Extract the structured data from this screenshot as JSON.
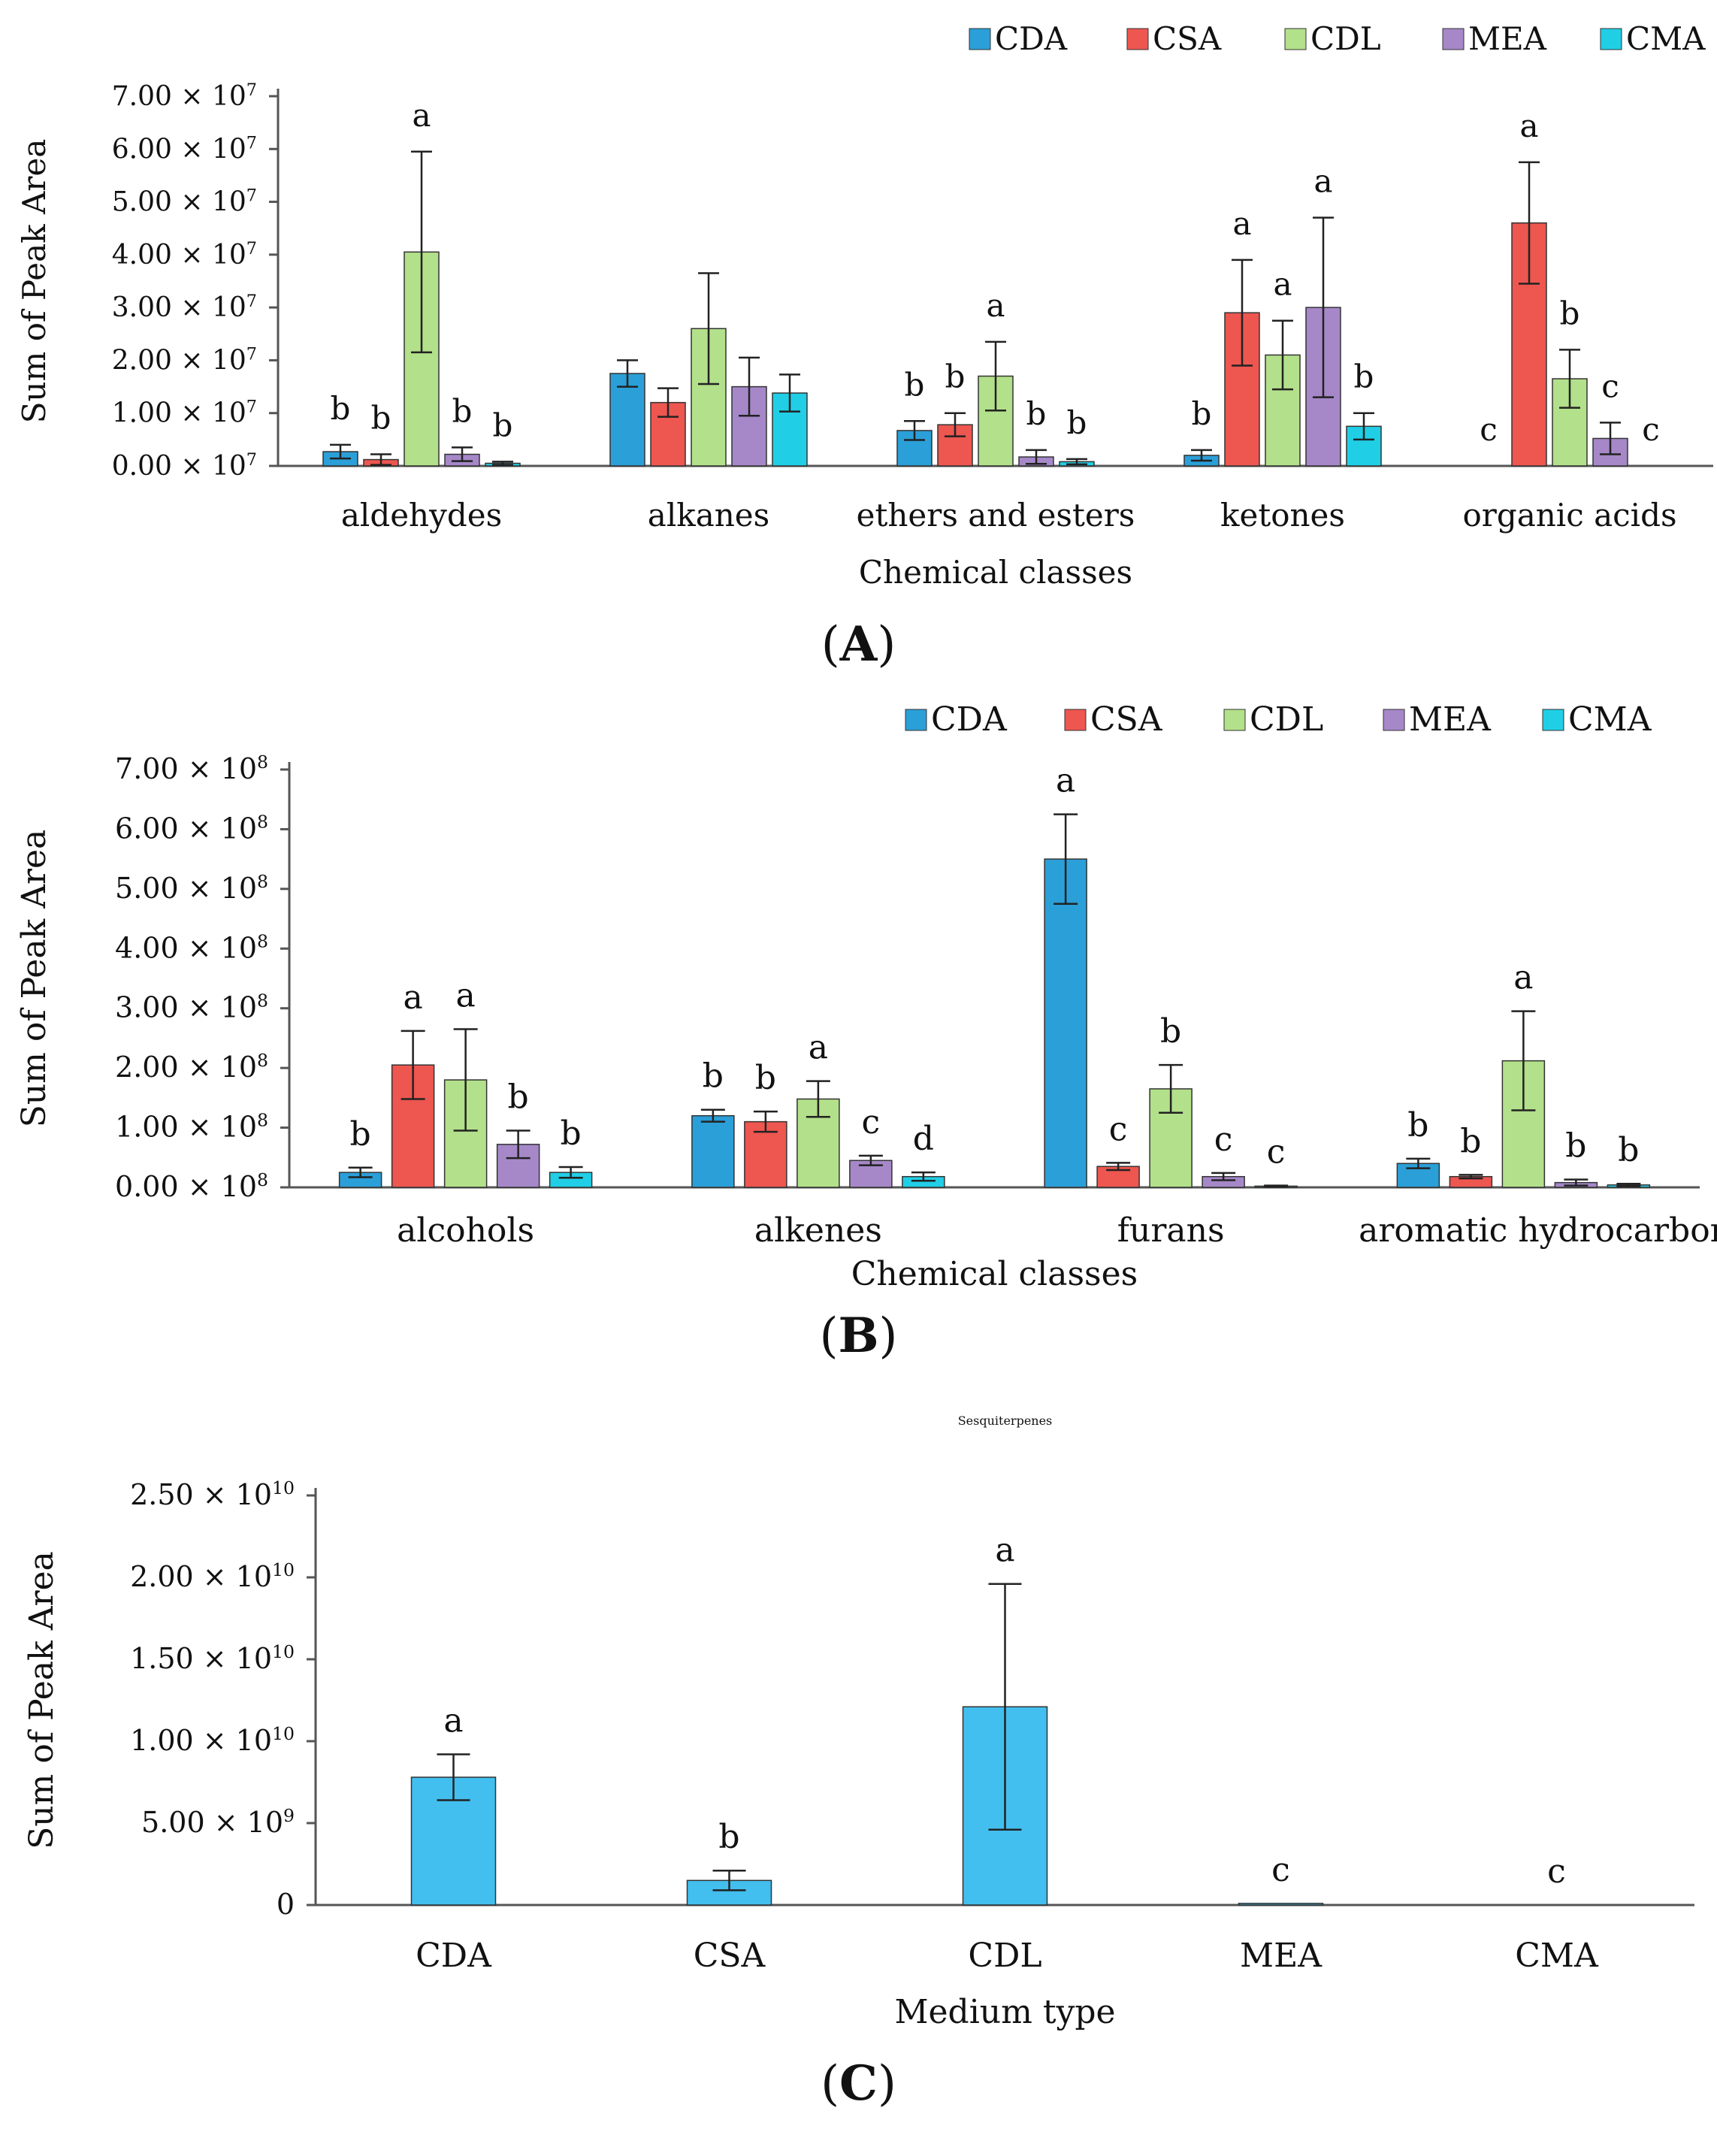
{
  "series_colors": {
    "CDA": "#2b9fd8",
    "CSA": "#ee5650",
    "CDL": "#b3e08a",
    "MEA": "#a688c9",
    "CMA": "#20cfe6"
  },
  "chart_data": [
    {
      "id": "A",
      "type": "bar",
      "panel_label": "A",
      "title": "",
      "xlabel": "Chemical classes",
      "ylabel": "Sum of Peak Area",
      "ylim": [
        0,
        70000000
      ],
      "yticks": [
        {
          "value": 0,
          "mant": "0.00 × 10",
          "exp": "7"
        },
        {
          "value": 10000000,
          "mant": "1.00 × 10",
          "exp": "7"
        },
        {
          "value": 20000000,
          "mant": "2.00 × 10",
          "exp": "7"
        },
        {
          "value": 30000000,
          "mant": "3.00 × 10",
          "exp": "7"
        },
        {
          "value": 40000000,
          "mant": "4.00 × 10",
          "exp": "7"
        },
        {
          "value": 50000000,
          "mant": "5.00 × 10",
          "exp": "7"
        },
        {
          "value": 60000000,
          "mant": "6.00 × 10",
          "exp": "7"
        },
        {
          "value": 70000000,
          "mant": "7.00 × 10",
          "exp": "7"
        }
      ],
      "legend": [
        "CDA",
        "CSA",
        "CDL",
        "MEA",
        "CMA"
      ],
      "legend_position": "top-right",
      "categories": [
        "aldehydes",
        "alkanes",
        "ethers and esters",
        "ketones",
        "organic acids"
      ],
      "series": [
        {
          "name": "CDA",
          "values": [
            2700000,
            17500000,
            6700000,
            2000000,
            0
          ],
          "errors": [
            1300000,
            2500000,
            1800000,
            1000000,
            0
          ],
          "letters": [
            "b",
            "",
            "b",
            "b",
            "c"
          ]
        },
        {
          "name": "CSA",
          "values": [
            1200000,
            12000000,
            7800000,
            29000000,
            46000000
          ],
          "errors": [
            1000000,
            2700000,
            2200000,
            10000000,
            11500000
          ],
          "letters": [
            "b",
            "",
            "b",
            "a",
            "a"
          ]
        },
        {
          "name": "CDL",
          "values": [
            40500000,
            26000000,
            17000000,
            21000000,
            16500000
          ],
          "errors": [
            19000000,
            10500000,
            6500000,
            6500000,
            5500000
          ],
          "letters": [
            "a",
            "",
            "a",
            "a",
            "b"
          ]
        },
        {
          "name": "MEA",
          "values": [
            2200000,
            15000000,
            1700000,
            30000000,
            5200000
          ],
          "errors": [
            1300000,
            5500000,
            1300000,
            17000000,
            3000000
          ],
          "letters": [
            "b",
            "",
            "b",
            "a",
            "c"
          ]
        },
        {
          "name": "CMA",
          "values": [
            500000,
            13800000,
            800000,
            7500000,
            0
          ],
          "errors": [
            300000,
            3500000,
            500000,
            2500000,
            0
          ],
          "letters": [
            "b",
            "",
            "b",
            "b",
            "c"
          ]
        }
      ]
    },
    {
      "id": "B",
      "type": "bar",
      "panel_label": "B",
      "title": "",
      "xlabel": "Chemical classes",
      "ylabel": "Sum of Peak Area",
      "ylim": [
        0,
        700000000
      ],
      "yticks": [
        {
          "value": 0,
          "mant": "0.00 × 10",
          "exp": "8"
        },
        {
          "value": 100000000,
          "mant": "1.00 × 10",
          "exp": "8"
        },
        {
          "value": 200000000,
          "mant": "2.00 × 10",
          "exp": "8"
        },
        {
          "value": 300000000,
          "mant": "3.00 × 10",
          "exp": "8"
        },
        {
          "value": 400000000,
          "mant": "4.00 × 10",
          "exp": "8"
        },
        {
          "value": 500000000,
          "mant": "5.00 × 10",
          "exp": "8"
        },
        {
          "value": 600000000,
          "mant": "6.00 × 10",
          "exp": "8"
        },
        {
          "value": 700000000,
          "mant": "7.00 × 10",
          "exp": "8"
        }
      ],
      "legend": [
        "CDA",
        "CSA",
        "CDL",
        "MEA",
        "CMA"
      ],
      "legend_position": "top-right",
      "categories": [
        "alcohols",
        "alkenes",
        "furans",
        "aromatic hydrocarbons"
      ],
      "series": [
        {
          "name": "CDA",
          "values": [
            25000000,
            120000000,
            550000000,
            40000000
          ],
          "errors": [
            8000000,
            10000000,
            75000000,
            8000000
          ],
          "letters": [
            "b",
            "b",
            "a",
            "b"
          ]
        },
        {
          "name": "CSA",
          "values": [
            205000000,
            110000000,
            35000000,
            18000000
          ],
          "errors": [
            57000000,
            17000000,
            6000000,
            3000000
          ],
          "letters": [
            "a",
            "b",
            "c",
            "b"
          ]
        },
        {
          "name": "CDL",
          "values": [
            180000000,
            148000000,
            165000000,
            212000000
          ],
          "errors": [
            85000000,
            30000000,
            40000000,
            83000000
          ],
          "letters": [
            "a",
            "a",
            "b",
            "a"
          ]
        },
        {
          "name": "MEA",
          "values": [
            72000000,
            45000000,
            18000000,
            8000000
          ],
          "errors": [
            23000000,
            8000000,
            6000000,
            5000000
          ],
          "letters": [
            "b",
            "c",
            "c",
            "b"
          ]
        },
        {
          "name": "CMA",
          "values": [
            25000000,
            18000000,
            2000000,
            4000000
          ],
          "errors": [
            9000000,
            7000000,
            1000000,
            2000000
          ],
          "letters": [
            "b",
            "d",
            "c",
            "b"
          ]
        }
      ]
    },
    {
      "id": "C",
      "type": "bar",
      "panel_label": "C",
      "title": "Sesquiterpenes",
      "xlabel": "Medium type",
      "ylabel": "Sum of Peak Area",
      "ylim": [
        0,
        25000000000
      ],
      "yticks": [
        {
          "value": 0,
          "mant": "0",
          "exp": ""
        },
        {
          "value": 5000000000,
          "mant": "5.00 × 10",
          "exp": "9"
        },
        {
          "value": 10000000000,
          "mant": "1.00 × 10",
          "exp": "10"
        },
        {
          "value": 15000000000,
          "mant": "1.50 × 10",
          "exp": "10"
        },
        {
          "value": 20000000000,
          "mant": "2.00 × 10",
          "exp": "10"
        },
        {
          "value": 25000000000,
          "mant": "2.50 × 10",
          "exp": "10"
        }
      ],
      "legend": [],
      "categories": [
        "CDA",
        "CSA",
        "CDL",
        "MEA",
        "CMA"
      ],
      "series": [
        {
          "name": "Sesquiterpenes",
          "values": [
            7800000000,
            1500000000,
            12100000000,
            100000000,
            0
          ],
          "errors": [
            1400000000,
            600000000,
            7500000000,
            0,
            0
          ],
          "letters": [
            "a",
            "b",
            "a",
            "c",
            "c"
          ]
        }
      ]
    }
  ]
}
